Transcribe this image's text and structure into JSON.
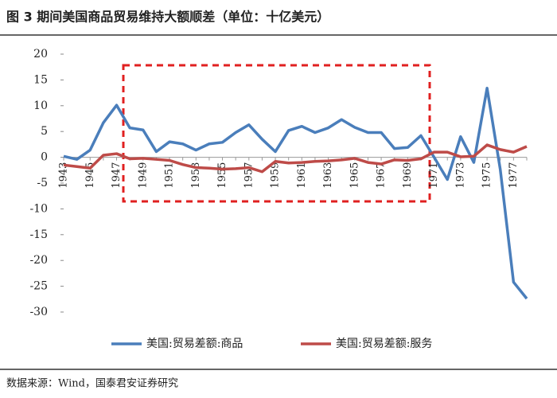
{
  "chart_data": {
    "type": "line",
    "title": "图 3 期间美国商品贸易维持大额顺差（单位：十亿美元）",
    "source": "数据来源：Wind，国泰君安证券研究",
    "categories": [
      "1943",
      null,
      "1945",
      null,
      "1947",
      null,
      "1949",
      null,
      "1951",
      null,
      "1953",
      null,
      "1955",
      null,
      "1957",
      null,
      "1959",
      null,
      "1961",
      null,
      "1963",
      null,
      "1965",
      null,
      "1967",
      null,
      "1969",
      null,
      "1971",
      null,
      "1973",
      null,
      "1975",
      null,
      "1977",
      null
    ],
    "series": [
      {
        "name": "美国:贸易差额:商品",
        "color": "#4a7ebb",
        "values": [
          0.2,
          -0.4,
          1.4,
          6.7,
          10.1,
          5.7,
          5.3,
          1.1,
          3.0,
          2.6,
          1.4,
          2.6,
          2.9,
          4.8,
          6.3,
          3.5,
          1.1,
          5.2,
          6.0,
          4.8,
          5.7,
          7.3,
          5.8,
          4.8,
          4.8,
          1.7,
          1.9,
          4.2,
          0,
          -4.3,
          4.0,
          -1.0,
          13.4,
          -2.4,
          -24.2,
          -27.4
        ]
      },
      {
        "name": "美国:贸易差额:服务",
        "color": "#be4b48",
        "values": [
          -1.5,
          -1.8,
          -2.1,
          0.4,
          0.7,
          -0.3,
          -0.2,
          -0.4,
          -0.6,
          -1.4,
          -2.0,
          -2.1,
          -2.3,
          -2.2,
          -2.0,
          -2.8,
          -0.8,
          -1.1,
          -1.0,
          -0.8,
          -0.7,
          -0.5,
          -0.2,
          -1.0,
          -1.3,
          -0.5,
          -0.6,
          -0.3,
          1.0,
          1.0,
          0.1,
          0.2,
          2.4,
          1.5,
          1.0,
          2.1
        ]
      }
    ],
    "ylim": [
      -30,
      20
    ],
    "yticks": [
      -30,
      -25,
      -20,
      -15,
      -10,
      -5,
      0,
      5,
      10,
      15,
      20
    ],
    "legend": "bottom"
  }
}
